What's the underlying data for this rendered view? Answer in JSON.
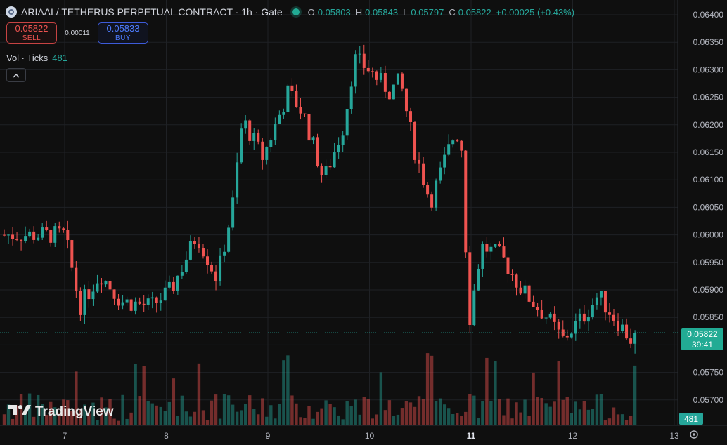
{
  "header": {
    "title": "ARIAAI / TETHERUS PERPETUAL CONTRACT · 1h · Gate",
    "ohlc": [
      {
        "key": "O",
        "value": "0.05803"
      },
      {
        "key": "H",
        "value": "0.05843"
      },
      {
        "key": "L",
        "value": "0.05797"
      },
      {
        "key": "C",
        "value": "0.05822"
      }
    ],
    "change": "+0.00025 (+0.43%)"
  },
  "trade": {
    "sell_price": "0.05822",
    "sell_label": "SELL",
    "spread": "0.00011",
    "buy_price": "0.05833",
    "buy_label": "BUY"
  },
  "volume_indicator": {
    "label": "Vol · Ticks",
    "value": "481"
  },
  "branding": {
    "logo_text": "TradingView"
  },
  "price_tag": {
    "price": "0.05822",
    "countdown": "39:41"
  },
  "volume_tag": "481",
  "colors": {
    "up": "#26a69a",
    "down": "#ef5350",
    "background": "#0f0f0f"
  },
  "chart_data": {
    "type": "candlestick",
    "y_ticks": [
      "0.06400",
      "0.06350",
      "0.06300",
      "0.06250",
      "0.06200",
      "0.06150",
      "0.06100",
      "0.06050",
      "0.06000",
      "0.05950",
      "0.05900",
      "0.05850",
      "0.05800",
      "0.05750",
      "0.05700"
    ],
    "x_ticks": [
      {
        "label": "7",
        "bold": false
      },
      {
        "label": "8",
        "bold": false
      },
      {
        "label": "9",
        "bold": false
      },
      {
        "label": "10",
        "bold": false
      },
      {
        "label": "11",
        "bold": true
      },
      {
        "label": "12",
        "bold": false
      },
      {
        "label": "13",
        "bold": false
      }
    ],
    "ylim": [
      0.0567,
      0.0642
    ],
    "current_price": 0.05822,
    "key_prices": [
      {
        "x": 0.0,
        "close": 0.06
      },
      {
        "x": 0.15,
        "close": 0.0587
      },
      {
        "x": 0.35,
        "close": 0.0593
      },
      {
        "x": 0.55,
        "close": 0.0588
      },
      {
        "x": 0.85,
        "close": 0.0587
      },
      {
        "x": 1.05,
        "close": 0.059
      },
      {
        "x": 1.3,
        "close": 0.06
      },
      {
        "x": 1.5,
        "close": 0.0592
      },
      {
        "x": 1.65,
        "close": 0.0605
      },
      {
        "x": 1.75,
        "close": 0.0621
      },
      {
        "x": 1.95,
        "close": 0.0614
      },
      {
        "x": 2.2,
        "close": 0.0626
      },
      {
        "x": 2.35,
        "close": 0.0622
      },
      {
        "x": 2.55,
        "close": 0.061
      },
      {
        "x": 2.75,
        "close": 0.062
      },
      {
        "x": 2.85,
        "close": 0.0632
      },
      {
        "x": 3.0,
        "close": 0.063
      },
      {
        "x": 3.2,
        "close": 0.0626
      },
      {
        "x": 3.3,
        "close": 0.0628
      },
      {
        "x": 3.45,
        "close": 0.0615
      },
      {
        "x": 3.6,
        "close": 0.0606
      },
      {
        "x": 3.75,
        "close": 0.0614
      },
      {
        "x": 3.85,
        "close": 0.0619
      },
      {
        "x": 3.92,
        "close": 0.0615
      },
      {
        "x": 3.97,
        "close": 0.0583
      },
      {
        "x": 4.1,
        "close": 0.0598
      },
      {
        "x": 4.3,
        "close": 0.0596
      },
      {
        "x": 4.5,
        "close": 0.059
      },
      {
        "x": 4.75,
        "close": 0.0585
      },
      {
        "x": 4.9,
        "close": 0.0581
      },
      {
        "x": 5.1,
        "close": 0.0585
      },
      {
        "x": 5.25,
        "close": 0.0589
      },
      {
        "x": 5.45,
        "close": 0.0584
      },
      {
        "x": 5.6,
        "close": 0.05803
      },
      {
        "x": 5.65,
        "close": 0.05822
      }
    ]
  }
}
